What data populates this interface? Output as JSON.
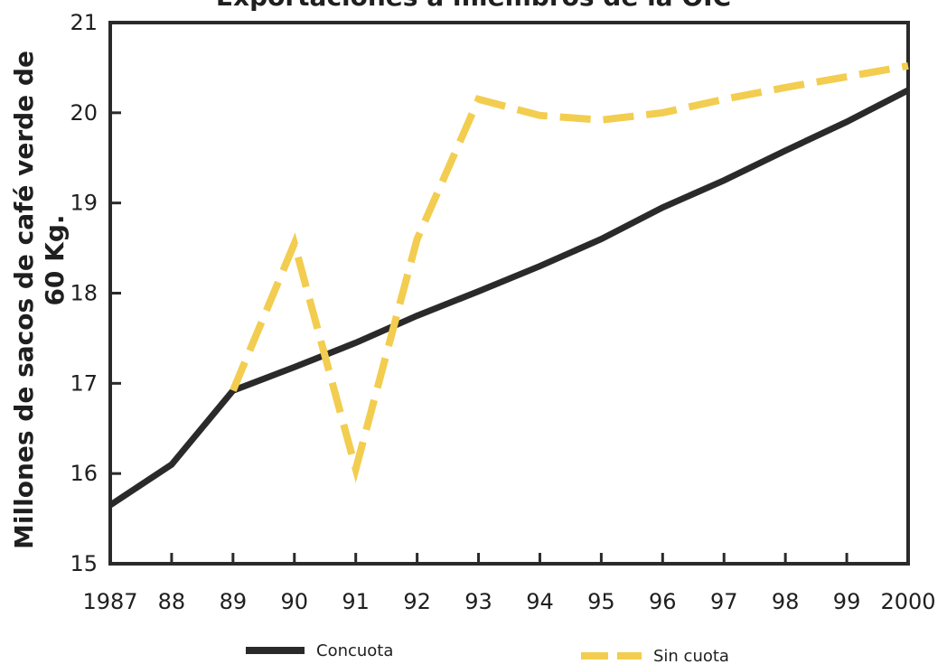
{
  "chart_data": {
    "type": "line",
    "title": "Exportaciones a miembros de la OIC",
    "ylabel": {
      "line1": "Millones de sacos de café verde de",
      "line2": "60 Kg."
    },
    "xlabel": "",
    "categories": [
      "1987",
      "88",
      "89",
      "90",
      "91",
      "92",
      "93",
      "94",
      "95",
      "96",
      "97",
      "98",
      "99",
      "2000"
    ],
    "yticks": [
      "15",
      "16",
      "17",
      "18",
      "19",
      "20",
      "21"
    ],
    "ylim": [
      15,
      21
    ],
    "grid": false,
    "legend_position": "bottom",
    "series": [
      {
        "name": "Concuota",
        "style": "solid",
        "color": "#2a2a2a",
        "values": [
          15.65,
          16.1,
          16.92,
          17.18,
          17.45,
          17.75,
          18.02,
          18.3,
          18.6,
          18.95,
          19.25,
          19.58,
          19.9,
          20.25
        ]
      },
      {
        "name": "Sin cuota",
        "style": "dashed",
        "color": "#f2cd4f",
        "values": [
          null,
          null,
          16.92,
          18.55,
          16.05,
          18.6,
          20.15,
          19.97,
          19.92,
          20.0,
          20.15,
          20.28,
          20.4,
          20.52
        ]
      }
    ]
  }
}
